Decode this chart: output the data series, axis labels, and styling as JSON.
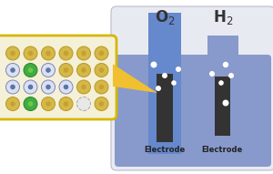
{
  "electrolyzer_bg": "#e8eaf2",
  "water_color": "#8899cc",
  "tube_left_color": "#6688cc",
  "tube_right_color": "#8899cc",
  "electrode_color": "#333333",
  "catalyst_box_bg": "#f5f0d8",
  "catalyst_box_border": "#d4b800",
  "arrow_color": "#f0c030",
  "dot_gold_face": "#d4b84a",
  "dot_gold_edge": "#b89820",
  "dot_gold_inner": "#c8a030",
  "dot_green_face": "#44aa44",
  "dot_green_edge": "#228822",
  "dot_blue_face": "#dde0f0",
  "dot_blue_edge": "#7788bb",
  "dot_blue_inner": "#5577aa",
  "dot_dashed_face": "#e8e8e8",
  "dot_dashed_edge": "#aaaaaa",
  "bubble_color": "#ffffff",
  "text_color": "#333333",
  "electrode_label_color": "#222222",
  "vessel_edge": "#bbbbcc"
}
